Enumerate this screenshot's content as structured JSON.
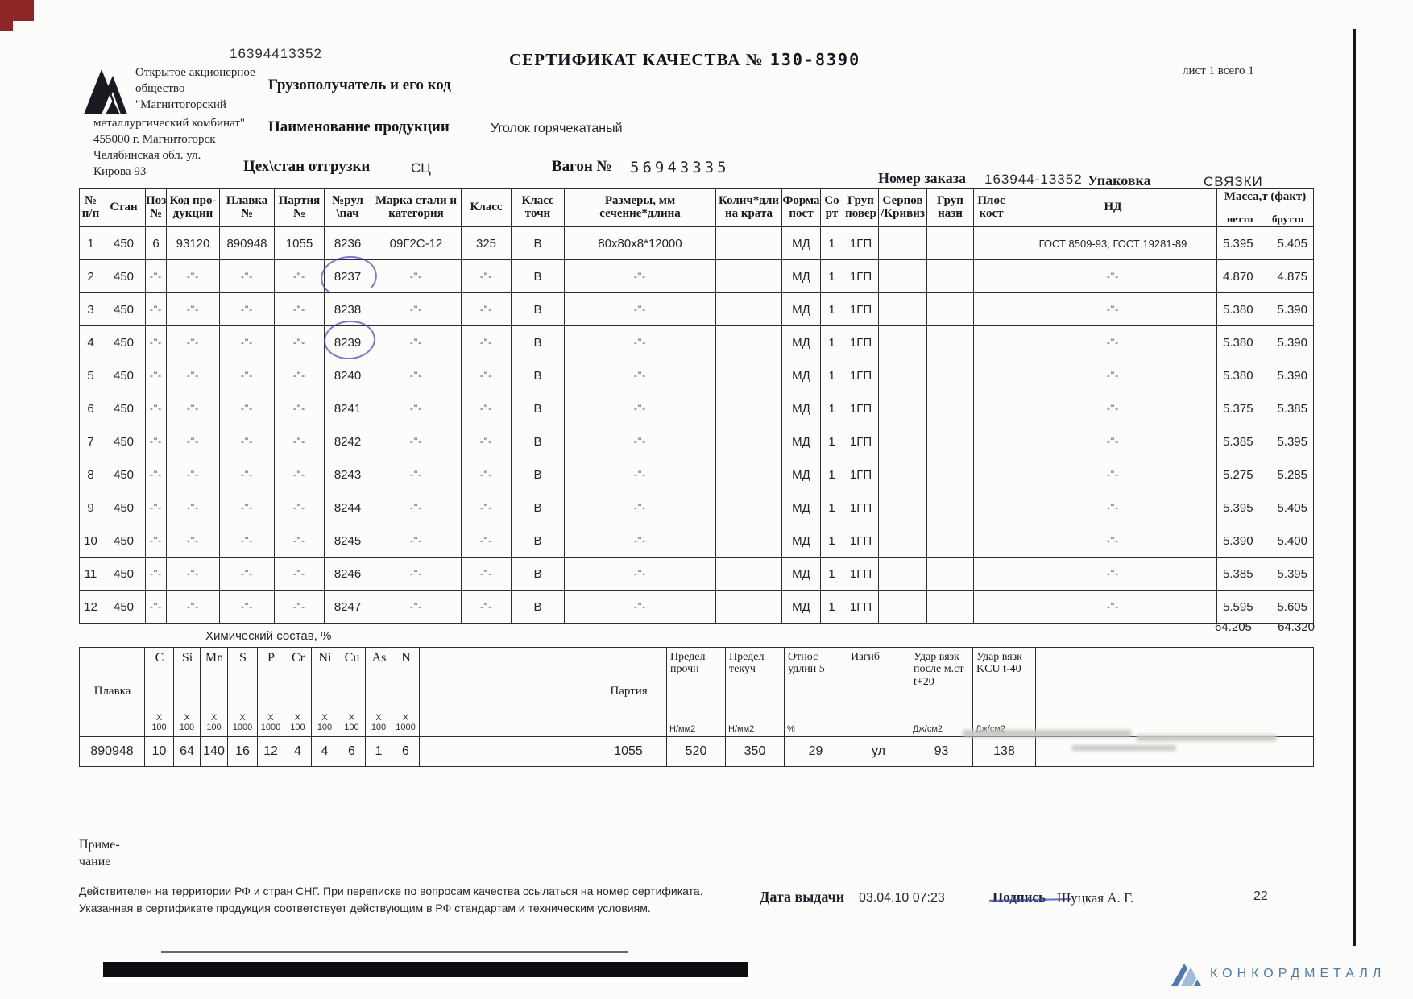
{
  "page": {
    "top_number": "16394413352",
    "title_label": "СЕРТИФИКАТ  КАЧЕСТВА  №",
    "title_number": "130-8390",
    "sheet_info": "лист 1 всего 1",
    "company_block1": [
      "Открытое акционерное",
      "общество",
      "\"Магнитогорский"
    ],
    "company_block2": [
      "металлургический комбинат\"",
      "455000 г. Магнитогорск",
      "Челябинская обл.  ул.",
      "Кирова 93"
    ],
    "consignee_label": "Грузополучатель и его код",
    "product_label": "Наименование продукции",
    "product_value": "Уголок горячекатаный",
    "shop_label": "Цех\\стан отгрузки",
    "shop_value": "СЦ",
    "wagon_label": "Вагон №",
    "wagon_value": "56943335",
    "order_label": "Номер заказа",
    "order_value": "163944-13352",
    "pack_label": "Упаковка",
    "pack_value": "СВЯЗКИ"
  },
  "main_table": {
    "columns": [
      "№|п/п",
      "Стан",
      "Поз|№",
      "Код про-|дукции",
      "Плавка|№",
      "Партия|№",
      "№рул|\\пач",
      "Марка стали и|категория",
      "Класс",
      "Класс|точн",
      "Размеры, мм|сечение*длина",
      "Колич*дли|на крата",
      "Форма|пост",
      "Со|рт",
      "Груп|повер",
      "Серпов|/Кривиз",
      "Груп|назн",
      "Плос|кост",
      "НД"
    ],
    "mass_title": "Масса,т (факт)",
    "mass_netto": "нетто",
    "mass_brutto": "брутто",
    "rows": [
      [
        "1",
        "450",
        "6",
        "93120",
        "890948",
        "1055",
        "8236",
        "09Г2С-12",
        "325",
        "В",
        "80x80x8*12000",
        "",
        "МД",
        "1",
        "1ГП",
        "",
        "",
        "",
        "ГОСТ 8509-93; ГОСТ 19281-89",
        "5.395",
        "5.405"
      ],
      [
        "2",
        "450",
        "-\"-",
        "-\"-",
        "-\"-",
        "-\"-",
        "8237",
        "-\"-",
        "-\"-",
        "В",
        "-\"-",
        "",
        "МД",
        "1",
        "1ГП",
        "",
        "",
        "",
        "-\"-",
        "4.870",
        "4.875"
      ],
      [
        "3",
        "450",
        "-\"-",
        "-\"-",
        "-\"-",
        "-\"-",
        "8238",
        "-\"-",
        "-\"-",
        "В",
        "-\"-",
        "",
        "МД",
        "1",
        "1ГП",
        "",
        "",
        "",
        "-\"-",
        "5.380",
        "5.390"
      ],
      [
        "4",
        "450",
        "-\"-",
        "-\"-",
        "-\"-",
        "-\"-",
        "8239",
        "-\"-",
        "-\"-",
        "В",
        "-\"-",
        "",
        "МД",
        "1",
        "1ГП",
        "",
        "",
        "",
        "-\"-",
        "5.380",
        "5.390"
      ],
      [
        "5",
        "450",
        "-\"-",
        "-\"-",
        "-\"-",
        "-\"-",
        "8240",
        "-\"-",
        "-\"-",
        "В",
        "-\"-",
        "",
        "МД",
        "1",
        "1ГП",
        "",
        "",
        "",
        "-\"-",
        "5.380",
        "5.390"
      ],
      [
        "6",
        "450",
        "-\"-",
        "-\"-",
        "-\"-",
        "-\"-",
        "8241",
        "-\"-",
        "-\"-",
        "В",
        "-\"-",
        "",
        "МД",
        "1",
        "1ГП",
        "",
        "",
        "",
        "-\"-",
        "5.375",
        "5.385"
      ],
      [
        "7",
        "450",
        "-\"-",
        "-\"-",
        "-\"-",
        "-\"-",
        "8242",
        "-\"-",
        "-\"-",
        "В",
        "-\"-",
        "",
        "МД",
        "1",
        "1ГП",
        "",
        "",
        "",
        "-\"-",
        "5.385",
        "5.395"
      ],
      [
        "8",
        "450",
        "-\"-",
        "-\"-",
        "-\"-",
        "-\"-",
        "8243",
        "-\"-",
        "-\"-",
        "В",
        "-\"-",
        "",
        "МД",
        "1",
        "1ГП",
        "",
        "",
        "",
        "-\"-",
        "5.275",
        "5.285"
      ],
      [
        "9",
        "450",
        "-\"-",
        "-\"-",
        "-\"-",
        "-\"-",
        "8244",
        "-\"-",
        "-\"-",
        "В",
        "-\"-",
        "",
        "МД",
        "1",
        "1ГП",
        "",
        "",
        "",
        "-\"-",
        "5.395",
        "5.405"
      ],
      [
        "10",
        "450",
        "-\"-",
        "-\"-",
        "-\"-",
        "-\"-",
        "8245",
        "-\"-",
        "-\"-",
        "В",
        "-\"-",
        "",
        "МД",
        "1",
        "1ГП",
        "",
        "",
        "",
        "-\"-",
        "5.390",
        "5.400"
      ],
      [
        "11",
        "450",
        "-\"-",
        "-\"-",
        "-\"-",
        "-\"-",
        "8246",
        "-\"-",
        "-\"-",
        "В",
        "-\"-",
        "",
        "МД",
        "1",
        "1ГП",
        "",
        "",
        "",
        "-\"-",
        "5.385",
        "5.395"
      ],
      [
        "12",
        "450",
        "-\"-",
        "-\"-",
        "-\"-",
        "-\"-",
        "8247",
        "-\"-",
        "-\"-",
        "В",
        "-\"-",
        "",
        "МД",
        "1",
        "1ГП",
        "",
        "",
        "",
        "-\"-",
        "5.595",
        "5.605"
      ]
    ],
    "total_netto": "64.205",
    "total_brutto": "64.320"
  },
  "chem_table": {
    "section_label": "Химический состав, %",
    "headers": [
      "Плавка",
      "C",
      "Si",
      "Mn",
      "S",
      "P",
      "Cr",
      "Ni",
      "Cu",
      "As",
      "N",
      "",
      "Партия",
      "Предел|прочн",
      "Предел|текуч",
      "Относ|удлин 5",
      "Изгиб",
      "Удар вязк|после м.ст|t+20",
      "Удар вязк|KCU t-40",
      ""
    ],
    "subs": [
      "",
      "X|100",
      "X|100",
      "X|100",
      "X|1000",
      "X|1000",
      "X|100",
      "X|100",
      "X|100",
      "X|100",
      "X|1000",
      "",
      "",
      "Н/мм2",
      "Н/мм2",
      "%",
      "",
      "Дж/см2",
      "Дж/см2",
      ""
    ],
    "row": [
      "890948",
      "10",
      "64",
      "140",
      "16",
      "12",
      "4",
      "4",
      "6",
      "1",
      "6",
      "",
      "1055",
      "520",
      "350",
      "29",
      "ул",
      "93",
      "138",
      ""
    ]
  },
  "footer": {
    "note_label": "Приме-|чание",
    "legal_line1": "Действителен на территории РФ и стран СНГ. При переписке по вопросам качества ссылаться на номер сертификата.",
    "legal_line2": "Указанная в сертификате продукция соответствует действующим в РФ стандартам и техническим условиям.",
    "date_label": "Дата выдачи",
    "date_value": "03.04.10 07:23",
    "sign_label": "Подпись",
    "sign_value": "Шуцкая А. Г.",
    "page_num": "22"
  },
  "branding": {
    "concord_text": "КОНКОРДМЕТАЛЛ"
  }
}
